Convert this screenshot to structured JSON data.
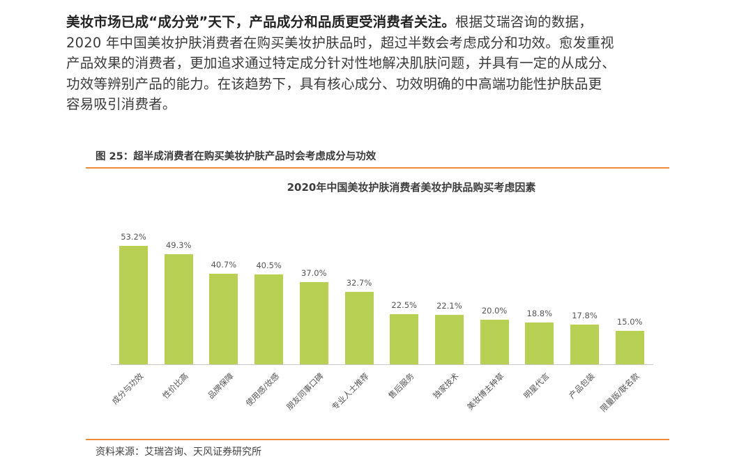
{
  "paragraph": {
    "lead": "美妆市场已成“成分党”天下，产品成分和品质更受消费者关注。",
    "lines": [
      "根据艾瑞咨询的数据，",
      "2020 年中国美妆护肤消费者在购买美妆护肤品时，超过半数会考虑成分和功效。愈发重视",
      "产品效果的消费者，更加追求通过特定成分针对性地解决肌肤问题，并具有一定的从成分、",
      "功效等辨别产品的能力。在该趋势下，具有核心成分、功效明确的中高端功能性护肤品更",
      "容易吸引消费者。"
    ]
  },
  "figure": {
    "caption": "图 25：超半成消费者在购买美妆护肤产品时会考虑成分与功效",
    "source": "资料来源：艾瑞咨询、天风证券研究所"
  },
  "colors": {
    "bar": "#b8d155",
    "rule": "#ee8a3c"
  },
  "chart_data": {
    "type": "bar",
    "title": "2020年中国美妆护肤消费者美妆护肤品购买考虑因素",
    "xlabel": "",
    "ylabel": "",
    "ylim": [
      0,
      60
    ],
    "grid": false,
    "legend": null,
    "categories": [
      "成分与功效",
      "性价比高",
      "品牌保障",
      "使用感/妆感",
      "朋友同事口碑",
      "专业人士推荐",
      "售后服务",
      "独家技术",
      "美妆博主种草",
      "明星代言",
      "产品包装",
      "限量版/联名款"
    ],
    "values": [
      53.2,
      49.3,
      40.7,
      40.5,
      37.0,
      32.7,
      22.5,
      22.1,
      20.0,
      18.8,
      17.8,
      15.0
    ],
    "value_labels": [
      "53.2%",
      "49.3%",
      "40.7%",
      "40.5%",
      "37.0%",
      "32.7%",
      "22.5%",
      "22.1%",
      "20.0%",
      "18.8%",
      "17.8%",
      "15.0%"
    ],
    "unit": "%"
  }
}
